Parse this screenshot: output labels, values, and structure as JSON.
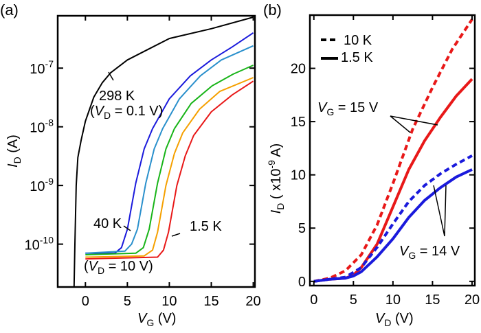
{
  "chart_data": [
    {
      "panel_label": "(a)",
      "type": "line",
      "xlabel": {
        "main": "V",
        "sub": "G",
        "unit": " (V)"
      },
      "ylabel": {
        "main": "I",
        "sub": "D",
        "unit": " (A)"
      },
      "xlim": [
        -3.3,
        20.2
      ],
      "ylim": [
        1.86e-11,
        7.8e-07
      ],
      "yscale": "log",
      "xticks": [
        "0",
        "5",
        "10",
        "15",
        "20"
      ],
      "xtick_values": [
        0,
        5,
        10,
        15,
        20
      ],
      "yticks": [
        {
          "base": "10",
          "exp": "-7",
          "value": 1e-07
        },
        {
          "base": "10",
          "exp": "-8",
          "value": 1e-08
        },
        {
          "base": "10",
          "exp": "-9",
          "value": 1e-09
        },
        {
          "base": "10",
          "exp": "-10",
          "value": 1e-10
        }
      ],
      "annotations": {
        "t298": "298 K",
        "vd01": {
          "open": "(",
          "v": "V",
          "sub": "D",
          "rest": " =  0.1 V)"
        },
        "t40": "40 K",
        "t15": "1.5 K",
        "vd10": {
          "open": "(",
          "v": "V",
          "sub": "D",
          "rest": " = 10 V)"
        }
      },
      "series": [
        {
          "color": "#000000",
          "x": [
            -1.35,
            -1.25,
            -1.1,
            -0.9,
            -0.5,
            0,
            1,
            2,
            3,
            5,
            7.5,
            10,
            15,
            20
          ],
          "y": [
            1.9e-11,
            1e-10,
            1e-09,
            3e-09,
            6e-09,
            1.25e-08,
            3.2e-08,
            5.6e-08,
            8.3e-08,
            1.38e-07,
            2.1e-07,
            3.2e-07,
            4.7e-07,
            7.4e-07
          ]
        },
        {
          "color": "#1a1adc",
          "x": [
            0,
            3.5,
            4.3,
            5,
            6,
            7,
            8,
            10,
            12.5,
            15,
            17.5,
            20
          ],
          "y": [
            7e-11,
            7e-11,
            8.7e-11,
            1.8e-10,
            1.1e-09,
            4.2e-09,
            9.3e-09,
            3e-08,
            7.4e-08,
            1.38e-07,
            2.3e-07,
            4e-07
          ]
        },
        {
          "color": "#2a90cc",
          "x": [
            0,
            4.7,
            5.5,
            6.2,
            7.2,
            8.2,
            9.2,
            11.2,
            13.7,
            16.2,
            20
          ],
          "y": [
            7e-11,
            7.6e-11,
            1e-10,
            1.8e-10,
            1.1e-09,
            4.2e-09,
            9.3e-09,
            3e-08,
            7.4e-08,
            1.38e-07,
            2.4e-07
          ]
        },
        {
          "color": "#18b418",
          "x": [
            0,
            6,
            6.9,
            7.6,
            8.6,
            9.6,
            10.6,
            12.6,
            15.1,
            17.6,
            20
          ],
          "y": [
            6.6e-11,
            7e-11,
            8.7e-11,
            1.8e-10,
            1.1e-09,
            4.2e-09,
            9.3e-09,
            2.5e-08,
            5e-08,
            7.9e-08,
            1.12e-07
          ]
        },
        {
          "color": "#f5a000",
          "x": [
            0,
            7,
            8,
            8.6,
            9.6,
            10.6,
            11.6,
            13.6,
            16,
            20
          ],
          "y": [
            6e-11,
            6.3e-11,
            7.9e-11,
            1.6e-10,
            1e-09,
            3.5e-09,
            7.9e-09,
            2e-08,
            4e-08,
            6.9e-08
          ]
        },
        {
          "color": "#e81818",
          "x": [
            0,
            8.6,
            9.3,
            9.9,
            10.9,
            11.9,
            12.9,
            15,
            17.5,
            20
          ],
          "y": [
            5.6e-11,
            6e-11,
            7.9e-11,
            1.6e-10,
            1e-09,
            3.2e-09,
            7.1e-09,
            1.8e-08,
            3.5e-08,
            6e-08
          ]
        }
      ]
    },
    {
      "panel_label": "(b)",
      "type": "line",
      "xlabel": {
        "main": "V",
        "sub": "D",
        "unit": " (V)"
      },
      "ylabel": {
        "main": "I",
        "sub": "D",
        "unit_pre": " ( x10",
        "exp": "-9",
        "unit_post": " A)"
      },
      "xlim": [
        -0.5,
        20.35
      ],
      "ylim": [
        -0.4,
        25
      ],
      "xticks": [
        "0",
        "5",
        "10",
        "15",
        "20"
      ],
      "xtick_values": [
        0,
        5,
        10,
        15,
        20
      ],
      "yticks": [
        "0",
        "5",
        "10",
        "15",
        "20"
      ],
      "ytick_values": [
        0,
        5,
        10,
        15,
        20
      ],
      "legend": {
        "position": "top-left",
        "entries": [
          {
            "label": "10 K",
            "style": "dashed"
          },
          {
            "label": "1.5 K",
            "style": "solid"
          }
        ]
      },
      "annotations": {
        "vg15": {
          "v": "V",
          "sub": "G",
          "rest": " = 15 V"
        },
        "vg14": {
          "v": "V",
          "sub": "G",
          "rest": " = 14 V"
        }
      },
      "series": [
        {
          "temperature": "10 K",
          "vg": "15 V",
          "color": "#e81818",
          "style": "dashed",
          "x": [
            0,
            2,
            4,
            6,
            8,
            10,
            12.5,
            15,
            17.5,
            20
          ],
          "y": [
            0,
            0.3,
            1.0,
            2.5,
            5.3,
            9.2,
            14.3,
            18.2,
            21.8,
            24.6
          ]
        },
        {
          "temperature": "1.5 K",
          "vg": "15 V",
          "color": "#e81818",
          "style": "solid",
          "x": [
            0,
            2,
            4,
            5,
            6,
            8,
            10,
            12,
            14,
            16,
            18,
            20
          ],
          "y": [
            0,
            0.2,
            0.3,
            0.6,
            1.3,
            3.5,
            7,
            10.5,
            13.2,
            15.4,
            17.4,
            19.0
          ]
        },
        {
          "temperature": "10 K",
          "vg": "14 V",
          "color": "#1a1adc",
          "style": "dashed",
          "x": [
            0,
            2,
            4,
            6,
            8,
            10,
            12,
            14,
            16,
            18,
            20
          ],
          "y": [
            0,
            0.2,
            0.4,
            1.3,
            3.2,
            5.4,
            7.5,
            9.0,
            10.1,
            11.0,
            11.8
          ]
        },
        {
          "temperature": "1.5 K",
          "vg": "14 V",
          "color": "#1a1adc",
          "style": "solid",
          "x": [
            0,
            2,
            4,
            5,
            6,
            8,
            10,
            12,
            14,
            16,
            18,
            20
          ],
          "y": [
            0,
            0.2,
            0.3,
            0.5,
            0.9,
            2.3,
            4.0,
            6.0,
            7.6,
            8.8,
            9.8,
            10.5
          ]
        }
      ]
    }
  ]
}
